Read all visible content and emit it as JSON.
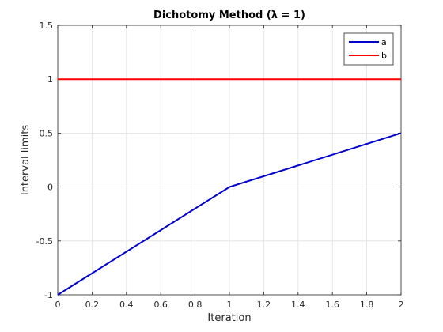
{
  "chart_data": {
    "type": "line",
    "title": "Dichotomy Method (λ = 1)",
    "xlabel": "Iteration",
    "ylabel": "Interval limits",
    "xlim": [
      0,
      2
    ],
    "ylim": [
      -1,
      1.5
    ],
    "xticks": [
      0,
      0.2,
      0.4,
      0.6,
      0.8,
      1,
      1.2,
      1.4,
      1.6,
      1.8,
      2
    ],
    "xtick_labels": [
      "0",
      "0.2",
      "0.4",
      "0.6",
      "0.8",
      "1",
      "1.2",
      "1.4",
      "1.6",
      "1.8",
      "2"
    ],
    "yticks": [
      -1,
      -0.5,
      0,
      0.5,
      1,
      1.5
    ],
    "ytick_labels": [
      "-1",
      "-0.5",
      "0",
      "0.5",
      "1",
      "1.5"
    ],
    "grid": true,
    "legend_position": "top-right",
    "x": [
      0,
      1,
      2
    ],
    "series": [
      {
        "name": "a",
        "values": [
          -1,
          0,
          0.5
        ],
        "color": "#0000cd"
      },
      {
        "name": "b",
        "values": [
          1,
          1,
          1
        ],
        "color": "#ff0000"
      }
    ]
  }
}
